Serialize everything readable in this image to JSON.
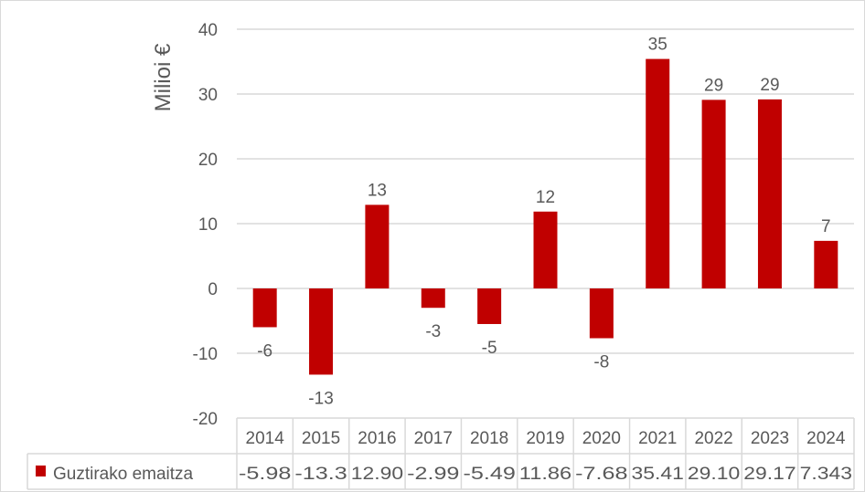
{
  "chart_data": {
    "type": "bar",
    "ylabel": "Milioi €",
    "ylim": [
      -20,
      40
    ],
    "yticks": [
      "-20",
      "-10",
      "0",
      "10",
      "20",
      "30",
      "40"
    ],
    "grid": true,
    "bar_color": "#C00000",
    "categories": [
      "2014",
      "2015",
      "2016",
      "2017",
      "2018",
      "2019",
      "2020",
      "2021",
      "2022",
      "2023",
      "2024"
    ],
    "series": [
      {
        "name": "Guztirako emaitza",
        "values": [
          -5.98,
          -13.3,
          12.9,
          -2.99,
          -5.49,
          11.86,
          -7.68,
          35.41,
          29.1,
          29.17,
          7.343
        ],
        "table_values": [
          "-5.98",
          "-13.3",
          "12.90",
          "-2.99",
          "-5.49",
          "11.86",
          "-7.68",
          "35.41",
          "29.10",
          "29.17",
          "7.343"
        ],
        "data_labels": [
          "-6",
          "-13",
          "13",
          "-3",
          "-5",
          "12",
          "-8",
          "35",
          "29",
          "29",
          "7"
        ]
      }
    ],
    "legend": "data-table"
  }
}
